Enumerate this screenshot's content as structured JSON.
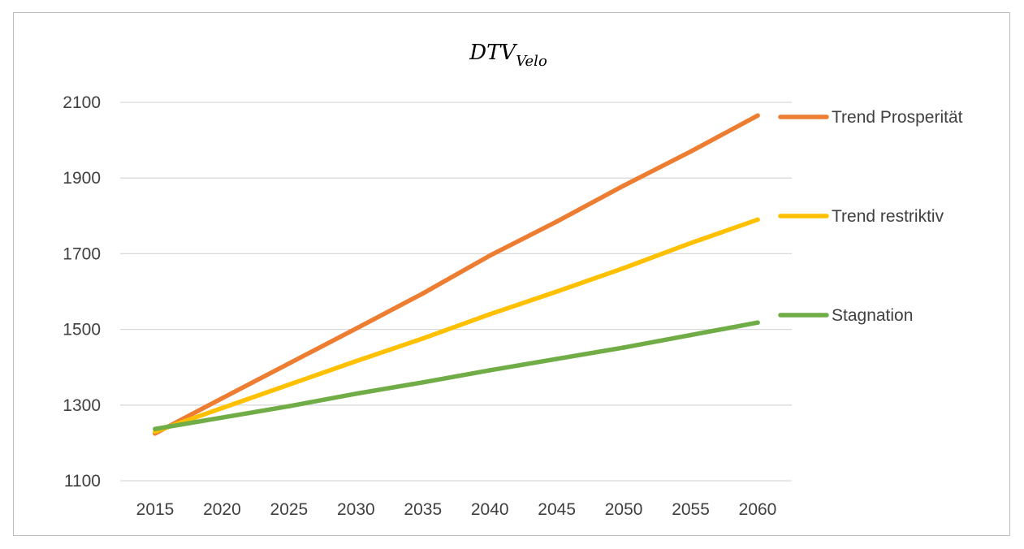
{
  "chart_data": {
    "type": "line",
    "title": "DTV",
    "title_subscript": "Velo",
    "x": [
      2015,
      2020,
      2025,
      2030,
      2035,
      2040,
      2045,
      2050,
      2055,
      2060
    ],
    "x_tick_labels": [
      "2015",
      "2020",
      "2025",
      "2030",
      "2035",
      "2040",
      "2045",
      "2050",
      "2055",
      "2060"
    ],
    "y_tick_labels": [
      "1100",
      "1300",
      "1500",
      "1700",
      "1900",
      "2100"
    ],
    "ylim": [
      1100,
      2100
    ],
    "grid": true,
    "legend_position": "right",
    "series": [
      {
        "name": "Trend Prosperität",
        "color": "#ed7d31",
        "values": [
          1225,
          1318,
          1410,
          1502,
          1595,
          1695,
          1785,
          1880,
          1970,
          2065
        ]
      },
      {
        "name": "Trend restriktiv",
        "color": "#ffc000",
        "values": [
          1230,
          1292,
          1354,
          1416,
          1476,
          1540,
          1600,
          1662,
          1728,
          1790
        ]
      },
      {
        "name": "Stagnation",
        "color": "#70ad47",
        "values": [
          1237,
          1267,
          1297,
          1330,
          1360,
          1392,
          1422,
          1452,
          1485,
          1518
        ]
      }
    ]
  }
}
